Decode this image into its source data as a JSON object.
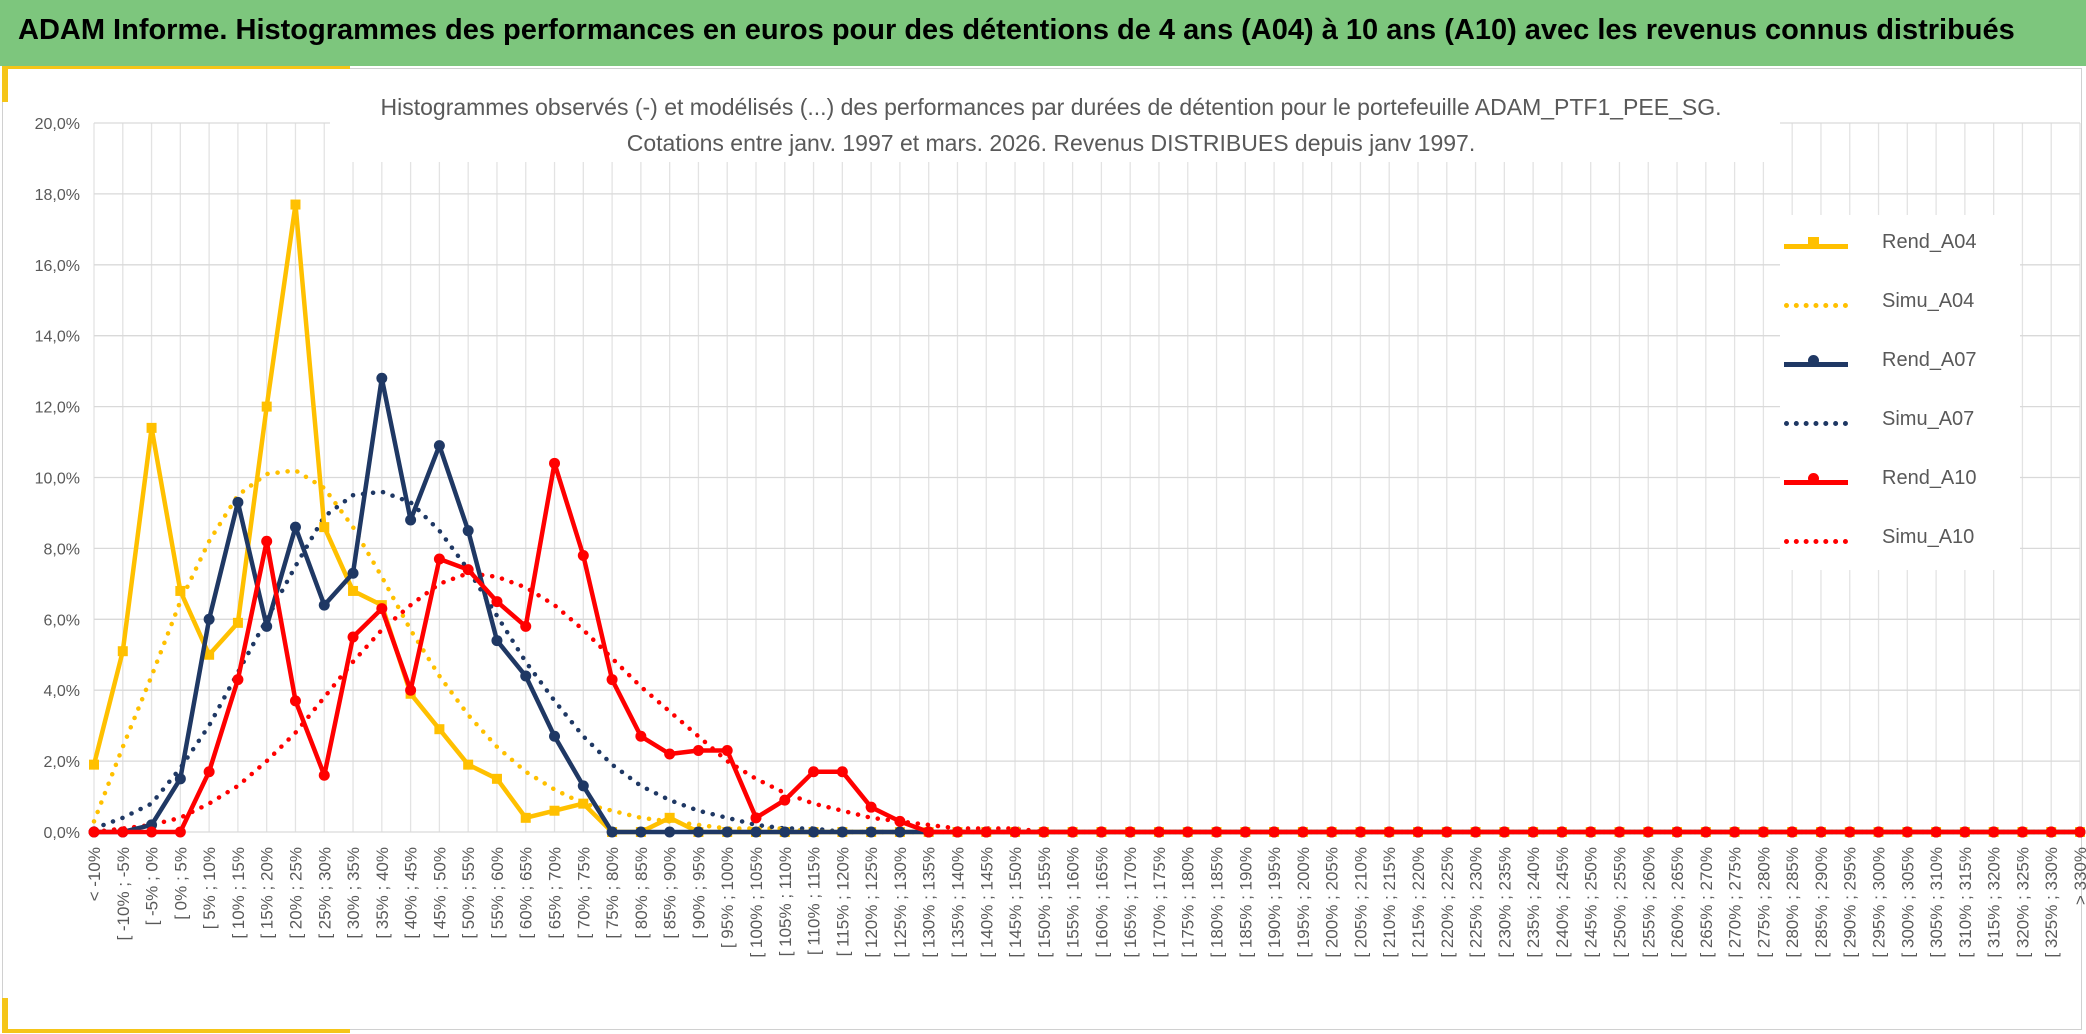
{
  "header": {
    "title": "ADAM Informe. Histogrammes des performances en euros pour des détentions de 4 ans (A04) à 10 ans (A10) avec les revenus connus distribués"
  },
  "colors": {
    "header_bg": "#7dc67d",
    "accent": "#f5c518",
    "A04": "#ffc000",
    "A07": "#1f3864",
    "A10": "#ff0000",
    "grid": "#d9d9d9",
    "axis_text": "#595959"
  },
  "chart_data": {
    "type": "line",
    "title_line1": "Histogrammes observés (-) et modélisés (...) des performances par durées de détention pour le portefeuille ADAM_PTF1_PEE_SG.",
    "title_line2": "Cotations entre janv. 1997 et mars. 2026. Revenus DISTRIBUES depuis janv 1997.",
    "ylim": [
      0,
      0.2
    ],
    "yticks": [
      "0,0%",
      "2,0%",
      "4,0%",
      "6,0%",
      "8,0%",
      "10,0%",
      "12,0%",
      "14,0%",
      "16,0%",
      "18,0%",
      "20,0%"
    ],
    "grid": true,
    "legend_position": "right",
    "categories": [
      "< -10%",
      "[ -10% ; -5%",
      "[ -5% ; 0%",
      "[ 0% ; 5%",
      "[ 5% ; 10%",
      "[ 10% ; 15%",
      "[ 15% ; 20%",
      "[ 20% ; 25%",
      "[ 25% ; 30%",
      "[ 30% ; 35%",
      "[ 35% ; 40%",
      "[ 40% ; 45%",
      "[ 45% ; 50%",
      "[ 50% ; 55%",
      "[ 55% ; 60%",
      "[ 60% ; 65%",
      "[ 65% ; 70%",
      "[ 70% ; 75%",
      "[ 75% ; 80%",
      "[ 80% ; 85%",
      "[ 85% ; 90%",
      "[ 90% ; 95%",
      "[ 95% ; 100%",
      "[ 100% ; 105%",
      "[ 105% ; 110%",
      "[ 110% ; 115%",
      "[ 115% ; 120%",
      "[ 120% ; 125%",
      "[ 125% ; 130%",
      "[ 130% ; 135%",
      "[ 135% ; 140%",
      "[ 140% ; 145%",
      "[ 145% ; 150%",
      "[ 150% ; 155%",
      "[ 155% ; 160%",
      "[ 160% ; 165%",
      "[ 165% ; 170%",
      "[ 170% ; 175%",
      "[ 175% ; 180%",
      "[ 180% ; 185%",
      "[ 185% ; 190%",
      "[ 190% ; 195%",
      "[ 195% ; 200%",
      "[ 200% ; 205%",
      "[ 205% ; 210%",
      "[ 210% ; 215%",
      "[ 215% ; 220%",
      "[ 220% ; 225%",
      "[ 225% ; 230%",
      "[ 230% ; 235%",
      "[ 235% ; 240%",
      "[ 240% ; 245%",
      "[ 245% ; 250%",
      "[ 250% ; 255%",
      "[ 255% ; 260%",
      "[ 260% ; 265%",
      "[ 265% ; 270%",
      "[ 270% ; 275%",
      "[ 275% ; 280%",
      "[ 280% ; 285%",
      "[ 285% ; 290%",
      "[ 290% ; 295%",
      "[ 295% ; 300%",
      "[ 300% ; 305%",
      "[ 305% ; 310%",
      "[ 310% ; 315%",
      "[ 315% ; 320%",
      "[ 320% ; 325%",
      "[ 325% ; 330%",
      "> 330%"
    ],
    "series": [
      {
        "name": "Rend_A04",
        "color": "#ffc000",
        "style": "solid",
        "marker": "square",
        "values": [
          0.019,
          0.051,
          0.114,
          0.068,
          0.05,
          0.059,
          0.12,
          0.177,
          0.086,
          0.068,
          0.064,
          0.039,
          0.029,
          0.019,
          0.015,
          0.004,
          0.006,
          0.008,
          0,
          0,
          0.004,
          0,
          0,
          0,
          0,
          0,
          0,
          0,
          0,
          0,
          0,
          0,
          0,
          0,
          0,
          0,
          0,
          0,
          0,
          0,
          0,
          0,
          0,
          0,
          0,
          0,
          0,
          0,
          0,
          0,
          0,
          0,
          0,
          0,
          0,
          0,
          0,
          0,
          0,
          0,
          0,
          0,
          0,
          0,
          0,
          0,
          0,
          0,
          0,
          0
        ]
      },
      {
        "name": "Simu_A04",
        "color": "#ffc000",
        "style": "dotted",
        "values": [
          0.003,
          0.024,
          0.044,
          0.065,
          0.082,
          0.095,
          0.101,
          0.102,
          0.097,
          0.086,
          0.072,
          0.057,
          0.044,
          0.033,
          0.024,
          0.017,
          0.012,
          0.008,
          0.006,
          0.004,
          0.003,
          0.002,
          0.001,
          0.001,
          0.001,
          0,
          0,
          0,
          0,
          0,
          0,
          0,
          0,
          0,
          0,
          0,
          0,
          0,
          0,
          0,
          0,
          0,
          0,
          0,
          0,
          0,
          0,
          0,
          0,
          0,
          0,
          0,
          0,
          0,
          0,
          0,
          0,
          0,
          0,
          0,
          0,
          0,
          0,
          0,
          0,
          0,
          0,
          0,
          0,
          0
        ]
      },
      {
        "name": "Rend_A07",
        "color": "#1f3864",
        "style": "solid",
        "marker": "circle",
        "values": [
          0,
          0,
          0.002,
          0.015,
          0.06,
          0.093,
          0.058,
          0.086,
          0.064,
          0.073,
          0.128,
          0.088,
          0.109,
          0.085,
          0.054,
          0.044,
          0.027,
          0.013,
          0,
          0,
          0,
          0,
          0,
          0,
          0,
          0,
          0,
          0,
          0,
          0,
          0,
          0,
          0,
          0,
          0,
          0,
          0,
          0,
          0,
          0,
          0,
          0,
          0,
          0,
          0,
          0,
          0,
          0,
          0,
          0,
          0,
          0,
          0,
          0,
          0,
          0,
          0,
          0,
          0,
          0,
          0,
          0,
          0,
          0,
          0,
          0,
          0,
          0,
          0,
          0
        ]
      },
      {
        "name": "Simu_A07",
        "color": "#1f3864",
        "style": "dotted",
        "values": [
          0.001,
          0.004,
          0.008,
          0.018,
          0.03,
          0.045,
          0.06,
          0.075,
          0.089,
          0.095,
          0.096,
          0.093,
          0.085,
          0.074,
          0.061,
          0.048,
          0.037,
          0.027,
          0.019,
          0.013,
          0.009,
          0.006,
          0.004,
          0.002,
          0.001,
          0.001,
          0,
          0,
          0,
          0,
          0,
          0,
          0,
          0,
          0,
          0,
          0,
          0,
          0,
          0,
          0,
          0,
          0,
          0,
          0,
          0,
          0,
          0,
          0,
          0,
          0,
          0,
          0,
          0,
          0,
          0,
          0,
          0,
          0,
          0,
          0,
          0,
          0,
          0,
          0,
          0,
          0,
          0,
          0,
          0
        ]
      },
      {
        "name": "Rend_A10",
        "color": "#ff0000",
        "style": "solid",
        "marker": "circle",
        "values": [
          0,
          0,
          0,
          0,
          0.017,
          0.043,
          0.082,
          0.037,
          0.016,
          0.055,
          0.063,
          0.04,
          0.077,
          0.074,
          0.065,
          0.058,
          0.104,
          0.078,
          0.043,
          0.027,
          0.022,
          0.023,
          0.023,
          0.004,
          0.009,
          0.017,
          0.017,
          0.007,
          0.003,
          0,
          0,
          0,
          0,
          0,
          0,
          0,
          0,
          0,
          0,
          0,
          0,
          0,
          0,
          0,
          0,
          0,
          0,
          0,
          0,
          0,
          0,
          0,
          0,
          0,
          0,
          0,
          0,
          0,
          0,
          0,
          0,
          0,
          0,
          0,
          0,
          0,
          0,
          0,
          0,
          0
        ]
      },
      {
        "name": "Simu_A10",
        "color": "#ff0000",
        "style": "dotted",
        "values": [
          0,
          0.001,
          0.002,
          0.004,
          0.008,
          0.013,
          0.02,
          0.028,
          0.038,
          0.048,
          0.057,
          0.064,
          0.07,
          0.073,
          0.072,
          0.069,
          0.064,
          0.057,
          0.049,
          0.041,
          0.034,
          0.027,
          0.02,
          0.015,
          0.011,
          0.008,
          0.006,
          0.004,
          0.003,
          0.002,
          0.001,
          0.001,
          0.001,
          0,
          0,
          0,
          0,
          0,
          0,
          0,
          0,
          0,
          0,
          0,
          0,
          0,
          0,
          0,
          0,
          0,
          0,
          0,
          0,
          0,
          0,
          0,
          0,
          0,
          0,
          0,
          0,
          0,
          0,
          0,
          0,
          0,
          0,
          0,
          0,
          0
        ]
      }
    ]
  }
}
